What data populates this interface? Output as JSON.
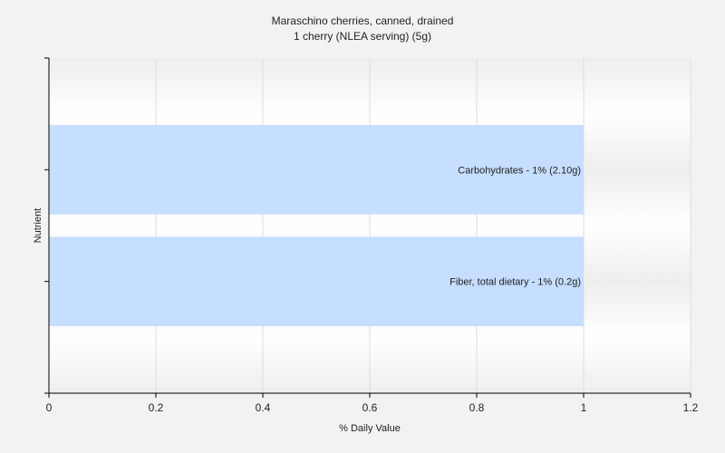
{
  "chart_data": {
    "type": "bar",
    "orientation": "horizontal",
    "title": "Maraschino cherries, canned, drained",
    "subtitle": "1 cherry (NLEA serving) (5g)",
    "xlabel": "% Daily Value",
    "ylabel": "Nutrient",
    "xlim": [
      0,
      1.2
    ],
    "xticks": [
      "0",
      "0.2",
      "0.4",
      "0.6",
      "0.8",
      "1",
      "1.2"
    ],
    "categories": [
      "Carbohydrates",
      "Fiber, total dietary"
    ],
    "values": [
      1,
      1
    ],
    "data_labels": [
      "Carbohydrates - 1% (2.10g)",
      "Fiber, total dietary - 1% (0.2g)"
    ],
    "grid": true,
    "bar_color": "#c6deff"
  }
}
